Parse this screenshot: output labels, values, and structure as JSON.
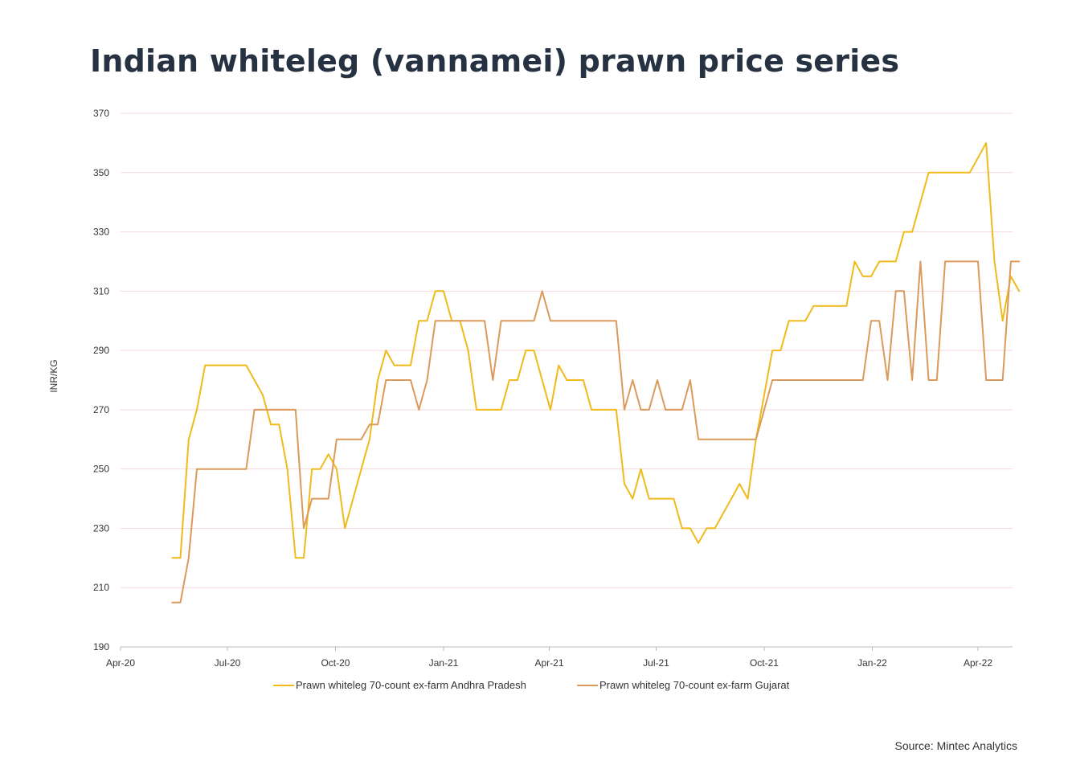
{
  "title": "Indian whiteleg (vannamei) prawn price series",
  "source": "Source: Mintec Analytics",
  "chart_data": {
    "type": "line",
    "title": "Indian whiteleg (vannamei) prawn price series",
    "xlabel": "",
    "ylabel": "INR/KG",
    "ylim": [
      190,
      370
    ],
    "yticks": [
      190,
      210,
      230,
      250,
      270,
      290,
      310,
      330,
      350,
      370
    ],
    "xlim": [
      "2020-04-01",
      "2022-04-30"
    ],
    "x_tick_labels": [
      "Apr-20",
      "Jul-20",
      "Oct-20",
      "Jan-21",
      "Apr-21",
      "Jul-21",
      "Oct-21",
      "Jan-22",
      "Apr-22"
    ],
    "x_tick_dates": [
      "2020-04-01",
      "2020-07-01",
      "2020-10-01",
      "2021-01-01",
      "2021-04-01",
      "2021-07-01",
      "2021-10-01",
      "2022-01-01",
      "2022-04-01"
    ],
    "grid": true,
    "legend_position": "bottom",
    "colors": {
      "andhra": "#F0BA1A",
      "gujarat": "#DC9A5A",
      "grid": "#F4D9D9",
      "axis": "#BBBBBB"
    },
    "series": [
      {
        "name": "Prawn whiteleg 70-count ex-farm Andhra Pradesh",
        "color": "#F0BA1A",
        "points": [
          [
            "2020-05-15",
            220
          ],
          [
            "2020-05-22",
            220
          ],
          [
            "2020-05-29",
            260
          ],
          [
            "2020-06-05",
            270
          ],
          [
            "2020-06-12",
            285
          ],
          [
            "2020-06-19",
            285
          ],
          [
            "2020-06-26",
            285
          ],
          [
            "2020-07-03",
            285
          ],
          [
            "2020-07-10",
            285
          ],
          [
            "2020-07-17",
            285
          ],
          [
            "2020-07-24",
            280
          ],
          [
            "2020-07-31",
            275
          ],
          [
            "2020-08-07",
            265
          ],
          [
            "2020-08-14",
            265
          ],
          [
            "2020-08-21",
            250
          ],
          [
            "2020-08-28",
            220
          ],
          [
            "2020-09-04",
            220
          ],
          [
            "2020-09-11",
            250
          ],
          [
            "2020-09-18",
            250
          ],
          [
            "2020-09-25",
            255
          ],
          [
            "2020-10-02",
            250
          ],
          [
            "2020-10-09",
            230
          ],
          [
            "2020-10-16",
            240
          ],
          [
            "2020-10-23",
            250
          ],
          [
            "2020-10-30",
            260
          ],
          [
            "2020-11-06",
            280
          ],
          [
            "2020-11-13",
            290
          ],
          [
            "2020-11-20",
            285
          ],
          [
            "2020-11-27",
            285
          ],
          [
            "2020-12-04",
            285
          ],
          [
            "2020-12-11",
            300
          ],
          [
            "2020-12-18",
            300
          ],
          [
            "2020-12-25",
            310
          ],
          [
            "2021-01-01",
            310
          ],
          [
            "2021-01-08",
            300
          ],
          [
            "2021-01-15",
            300
          ],
          [
            "2021-01-22",
            290
          ],
          [
            "2021-01-29",
            270
          ],
          [
            "2021-02-05",
            270
          ],
          [
            "2021-02-12",
            270
          ],
          [
            "2021-02-19",
            270
          ],
          [
            "2021-02-26",
            280
          ],
          [
            "2021-03-05",
            280
          ],
          [
            "2021-03-12",
            290
          ],
          [
            "2021-03-19",
            290
          ],
          [
            "2021-03-26",
            280
          ],
          [
            "2021-04-02",
            270
          ],
          [
            "2021-04-09",
            285
          ],
          [
            "2021-04-16",
            280
          ],
          [
            "2021-04-23",
            280
          ],
          [
            "2021-04-30",
            280
          ],
          [
            "2021-05-07",
            270
          ],
          [
            "2021-05-14",
            270
          ],
          [
            "2021-05-21",
            270
          ],
          [
            "2021-05-28",
            270
          ],
          [
            "2021-06-04",
            245
          ],
          [
            "2021-06-11",
            240
          ],
          [
            "2021-06-18",
            250
          ],
          [
            "2021-06-25",
            240
          ],
          [
            "2021-07-02",
            240
          ],
          [
            "2021-07-09",
            240
          ],
          [
            "2021-07-16",
            240
          ],
          [
            "2021-07-23",
            230
          ],
          [
            "2021-07-30",
            230
          ],
          [
            "2021-08-06",
            225
          ],
          [
            "2021-08-13",
            230
          ],
          [
            "2021-08-20",
            230
          ],
          [
            "2021-08-27",
            235
          ],
          [
            "2021-09-03",
            240
          ],
          [
            "2021-09-10",
            245
          ],
          [
            "2021-09-17",
            240
          ],
          [
            "2021-09-24",
            260
          ],
          [
            "2021-10-01",
            275
          ],
          [
            "2021-10-08",
            290
          ],
          [
            "2021-10-15",
            290
          ],
          [
            "2021-10-22",
            300
          ],
          [
            "2021-10-29",
            300
          ],
          [
            "2021-11-05",
            300
          ],
          [
            "2021-11-12",
            305
          ],
          [
            "2021-11-19",
            305
          ],
          [
            "2021-11-26",
            305
          ],
          [
            "2021-12-03",
            305
          ],
          [
            "2021-12-10",
            305
          ],
          [
            "2021-12-17",
            320
          ],
          [
            "2021-12-24",
            315
          ],
          [
            "2021-12-31",
            315
          ],
          [
            "2022-01-07",
            320
          ],
          [
            "2022-01-14",
            320
          ],
          [
            "2022-01-21",
            320
          ],
          [
            "2022-01-28",
            330
          ],
          [
            "2022-02-04",
            330
          ],
          [
            "2022-02-11",
            340
          ],
          [
            "2022-02-18",
            350
          ],
          [
            "2022-02-25",
            350
          ],
          [
            "2022-03-04",
            350
          ],
          [
            "2022-03-11",
            350
          ],
          [
            "2022-03-18",
            350
          ],
          [
            "2022-03-25",
            350
          ],
          [
            "2022-04-01",
            355
          ],
          [
            "2022-04-08",
            360
          ],
          [
            "2022-04-15",
            320
          ],
          [
            "2022-04-22",
            300
          ],
          [
            "2022-04-29",
            315
          ],
          [
            "2022-05-06",
            310
          ]
        ]
      },
      {
        "name": "Prawn whiteleg 70-count ex-farm Gujarat",
        "color": "#DC9A5A",
        "points": [
          [
            "2020-05-15",
            205
          ],
          [
            "2020-05-22",
            205
          ],
          [
            "2020-05-29",
            220
          ],
          [
            "2020-06-05",
            250
          ],
          [
            "2020-06-12",
            250
          ],
          [
            "2020-06-19",
            250
          ],
          [
            "2020-06-26",
            250
          ],
          [
            "2020-07-03",
            250
          ],
          [
            "2020-07-10",
            250
          ],
          [
            "2020-07-17",
            250
          ],
          [
            "2020-07-24",
            270
          ],
          [
            "2020-07-31",
            270
          ],
          [
            "2020-08-07",
            270
          ],
          [
            "2020-08-14",
            270
          ],
          [
            "2020-08-21",
            270
          ],
          [
            "2020-08-28",
            270
          ],
          [
            "2020-09-04",
            230
          ],
          [
            "2020-09-11",
            240
          ],
          [
            "2020-09-18",
            240
          ],
          [
            "2020-09-25",
            240
          ],
          [
            "2020-10-02",
            260
          ],
          [
            "2020-10-09",
            260
          ],
          [
            "2020-10-16",
            260
          ],
          [
            "2020-10-23",
            260
          ],
          [
            "2020-10-30",
            265
          ],
          [
            "2020-11-06",
            265
          ],
          [
            "2020-11-13",
            280
          ],
          [
            "2020-11-20",
            280
          ],
          [
            "2020-11-27",
            280
          ],
          [
            "2020-12-04",
            280
          ],
          [
            "2020-12-11",
            270
          ],
          [
            "2020-12-18",
            280
          ],
          [
            "2020-12-25",
            300
          ],
          [
            "2021-01-01",
            300
          ],
          [
            "2021-01-08",
            300
          ],
          [
            "2021-01-15",
            300
          ],
          [
            "2021-01-22",
            300
          ],
          [
            "2021-01-29",
            300
          ],
          [
            "2021-02-05",
            300
          ],
          [
            "2021-02-12",
            280
          ],
          [
            "2021-02-19",
            300
          ],
          [
            "2021-02-26",
            300
          ],
          [
            "2021-03-05",
            300
          ],
          [
            "2021-03-12",
            300
          ],
          [
            "2021-03-19",
            300
          ],
          [
            "2021-03-26",
            310
          ],
          [
            "2021-04-02",
            300
          ],
          [
            "2021-04-09",
            300
          ],
          [
            "2021-04-16",
            300
          ],
          [
            "2021-04-23",
            300
          ],
          [
            "2021-04-30",
            300
          ],
          [
            "2021-05-07",
            300
          ],
          [
            "2021-05-14",
            300
          ],
          [
            "2021-05-21",
            300
          ],
          [
            "2021-05-28",
            300
          ],
          [
            "2021-06-04",
            270
          ],
          [
            "2021-06-11",
            280
          ],
          [
            "2021-06-18",
            270
          ],
          [
            "2021-06-25",
            270
          ],
          [
            "2021-07-02",
            280
          ],
          [
            "2021-07-09",
            270
          ],
          [
            "2021-07-16",
            270
          ],
          [
            "2021-07-23",
            270
          ],
          [
            "2021-07-30",
            280
          ],
          [
            "2021-08-06",
            260
          ],
          [
            "2021-08-13",
            260
          ],
          [
            "2021-08-20",
            260
          ],
          [
            "2021-08-27",
            260
          ],
          [
            "2021-09-03",
            260
          ],
          [
            "2021-09-10",
            260
          ],
          [
            "2021-09-17",
            260
          ],
          [
            "2021-09-24",
            260
          ],
          [
            "2021-10-01",
            270
          ],
          [
            "2021-10-08",
            280
          ],
          [
            "2021-10-15",
            280
          ],
          [
            "2021-10-22",
            280
          ],
          [
            "2021-10-29",
            280
          ],
          [
            "2021-11-05",
            280
          ],
          [
            "2021-11-12",
            280
          ],
          [
            "2021-11-19",
            280
          ],
          [
            "2021-11-26",
            280
          ],
          [
            "2021-12-03",
            280
          ],
          [
            "2021-12-10",
            280
          ],
          [
            "2021-12-17",
            280
          ],
          [
            "2021-12-24",
            280
          ],
          [
            "2021-12-31",
            300
          ],
          [
            "2022-01-07",
            300
          ],
          [
            "2022-01-14",
            280
          ],
          [
            "2022-01-21",
            310
          ],
          [
            "2022-01-28",
            310
          ],
          [
            "2022-02-04",
            280
          ],
          [
            "2022-02-11",
            320
          ],
          [
            "2022-02-18",
            280
          ],
          [
            "2022-02-25",
            280
          ],
          [
            "2022-03-04",
            320
          ],
          [
            "2022-03-11",
            320
          ],
          [
            "2022-03-18",
            320
          ],
          [
            "2022-03-25",
            320
          ],
          [
            "2022-04-01",
            320
          ],
          [
            "2022-04-08",
            280
          ],
          [
            "2022-04-15",
            280
          ],
          [
            "2022-04-22",
            280
          ],
          [
            "2022-04-29",
            320
          ],
          [
            "2022-05-06",
            320
          ]
        ]
      }
    ]
  }
}
